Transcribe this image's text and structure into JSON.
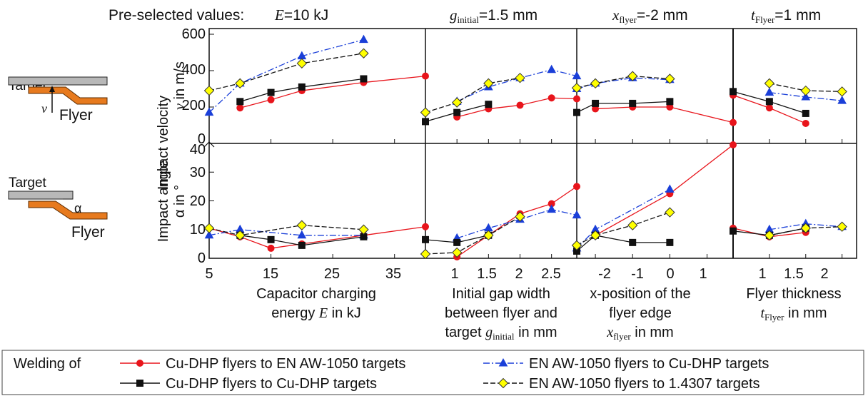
{
  "header": {
    "label": "Pre-selected values:",
    "e_sym": "E",
    "e_val": "=10 kJ",
    "g_sym": "g",
    "g_sub": "initial",
    "g_val": "=1.5 mm",
    "x_sym": "x",
    "x_sub": "flyer",
    "x_val": "=-2 mm",
    "t_sym": "t",
    "t_sub": "Flyer",
    "t_val": "=1 mm"
  },
  "schematic": {
    "top_target": "Target",
    "top_flyer": "Flyer",
    "top_symbol": "v",
    "bottom_target": "Target",
    "bottom_flyer": "Flyer",
    "bottom_symbol": "α"
  },
  "axes": {
    "top_ylabel_1": "Impact velocity",
    "top_ylabel_2a": "v",
    "top_ylabel_2b": " in m/s",
    "bottom_ylabel_1": "Impact angle",
    "bottom_ylabel_2a": "α",
    "bottom_ylabel_2b": " in °",
    "top_yticks": [
      "0",
      "200",
      "400",
      "600"
    ],
    "bottom_yticks": [
      "0",
      "10",
      "20",
      "30",
      "40"
    ]
  },
  "groups": [
    {
      "xticks": [
        "5",
        "15",
        "25",
        "35"
      ],
      "xlabel": {
        "l1": "Capacitor charging",
        "l2a": "energy ",
        "l2b": "E",
        "l2c": " in kJ",
        "l3a": "",
        "l3b": "",
        "l3c": ""
      }
    },
    {
      "xticks": [
        "1",
        "1.5",
        "2",
        "2.5"
      ],
      "xlabel": {
        "l1": "Initial gap width",
        "l2a": "between flyer and",
        "l2b": "",
        "l2c": "",
        "l3a": "target ",
        "l3b": "g",
        "l3sub": "initial",
        "l3c": " in mm"
      }
    },
    {
      "xticks": [
        "-2",
        "-1",
        "0",
        "1"
      ],
      "xlabel": {
        "l1": "x-position of the",
        "l2a": "flyer edge",
        "l2b": "",
        "l2c": "",
        "l3a": "",
        "l3b": "x",
        "l3sub": "flyer",
        "l3c": " in mm"
      }
    },
    {
      "xticks": [
        "1",
        "1.5",
        "2"
      ],
      "xlabel": {
        "l1": "Flyer thickness",
        "l2a": "",
        "l2b": "t",
        "l2sub": "Flyer",
        "l2c": " in mm",
        "l3a": "",
        "l3b": "",
        "l3c": ""
      }
    }
  ],
  "legend": {
    "title": "Welding of",
    "items": [
      "Cu-DHP flyers to EN AW-1050 targets",
      "EN AW-1050 flyers to Cu-DHP targets",
      "Cu-DHP flyers to Cu-DHP targets",
      "EN AW-1050 flyers to 1.4307 targets"
    ]
  },
  "chart_data": {
    "type": "line",
    "series": [
      {
        "name": "Cu-DHP flyers to EN AW-1050 targets",
        "color": "#e8141b",
        "marker": "circle",
        "dash": "solid"
      },
      {
        "name": "EN AW-1050 flyers to Cu-DHP targets",
        "color": "#1a3fd8",
        "marker": "triangle",
        "dash": "dashdot"
      },
      {
        "name": "Cu-DHP flyers to Cu-DHP targets",
        "color": "#111111",
        "marker": "square",
        "dash": "solid"
      },
      {
        "name": "EN AW-1050 flyers to 1.4307 targets",
        "color": "#ffff00",
        "marker": "diamond",
        "dash": "dashed"
      }
    ],
    "panels": {
      "velocity": {
        "ylim": [
          0,
          600
        ],
        "groups": [
          {
            "xlim": [
              5,
              40
            ],
            "series": [
              {
                "x": [
                  10,
                  15,
                  20,
                  30,
                  40
                ],
                "y": [
                  195,
                  240,
                  290,
                  335,
                  370
                ]
              },
              {
                "x": [
                  5,
                  10,
                  20,
                  30
                ],
                "y": [
                  170,
                  330,
                  480,
                  570
                ]
              },
              {
                "x": [
                  10,
                  15,
                  20,
                  30
                ],
                "y": [
                  230,
                  280,
                  310,
                  355
                ]
              },
              {
                "x": [
                  5,
                  10,
                  20,
                  30
                ],
                "y": [
                  290,
                  330,
                  440,
                  495
                ]
              }
            ]
          },
          {
            "xlim": [
              0.5,
              2.9
            ],
            "series": [
              {
                "x": [
                  1,
                  1.5,
                  2,
                  2.5,
                  2.9
                ],
                "y": [
                  145,
                  190,
                  210,
                  250,
                  245
                ]
              },
              {
                "x": [
                  1,
                  1.5,
                  2,
                  2.5,
                  2.9
                ],
                "y": [
                  230,
                  310,
                  360,
                  405,
                  370
                ]
              },
              {
                "x": [
                  0.5,
                  1,
                  1.5
                ],
                "y": [
                  120,
                  170,
                  215
                ]
              },
              {
                "x": [
                  0.5,
                  1,
                  1.5,
                  2
                ],
                "y": [
                  170,
                  225,
                  330,
                  360
                ]
              }
            ]
          },
          {
            "xlim": [
              -2.5,
              1.7
            ],
            "series": [
              {
                "x": [
                  -2,
                  -1,
                  0,
                  1.7
                ],
                "y": [
                  190,
                  200,
                  200,
                  115
                ]
              },
              {
                "x": [
                  -2.5,
                  -2,
                  -1,
                  0
                ],
                "y": [
                  300,
                  330,
                  360,
                  350
                ]
              },
              {
                "x": [
                  -2.5,
                  -2,
                  -1,
                  0
                ],
                "y": [
                  170,
                  220,
                  220,
                  230
                ]
              },
              {
                "x": [
                  -2.5,
                  -2,
                  -1,
                  0
                ],
                "y": [
                  305,
                  330,
                  370,
                  355
                ]
              }
            ]
          },
          {
            "xlim": [
              0.5,
              2.2
            ],
            "series": [
              {
                "x": [
                  0.5,
                  1,
                  1.5
                ],
                "y": [
                  265,
                  195,
                  110
                ]
              },
              {
                "x": [
                  1,
                  1.5,
                  2
                ],
                "y": [
                  280,
                  255,
                  235
                ]
              },
              {
                "x": [
                  0.5,
                  1,
                  1.5
                ],
                "y": [
                  285,
                  230,
                  165
                ]
              },
              {
                "x": [
                  1,
                  1.5,
                  2
                ],
                "y": [
                  330,
                  290,
                  285
                ]
              }
            ]
          }
        ]
      },
      "angle": {
        "ylim": [
          0,
          40
        ],
        "groups": [
          {
            "xlim": [
              5,
              40
            ],
            "series": [
              {
                "x": [
                  5,
                  10,
                  15,
                  20,
                  30,
                  40
                ],
                "y": [
                  10.5,
                  7.5,
                  3.5,
                  5,
                  8,
                  11
                ]
              },
              {
                "x": [
                  5,
                  10,
                  20,
                  30
                ],
                "y": [
                  8,
                  10,
                  8,
                  8
                ]
              },
              {
                "x": [
                  10,
                  15,
                  20,
                  30
                ],
                "y": [
                  8,
                  6.5,
                  4.5,
                  7.5
                ]
              },
              {
                "x": [
                  5,
                  10,
                  20,
                  30
                ],
                "y": [
                  10.5,
                  8,
                  11.5,
                  10
                ]
              }
            ]
          },
          {
            "xlim": [
              0.5,
              2.9
            ],
            "series": [
              {
                "x": [
                  1,
                  1.5,
                  2,
                  2.5,
                  2.9
                ],
                "y": [
                  0.5,
                  8,
                  15.5,
                  19,
                  25
                ]
              },
              {
                "x": [
                  1,
                  1.5,
                  2,
                  2.5,
                  2.9
                ],
                "y": [
                  7,
                  10.5,
                  13.5,
                  17,
                  15
                ]
              },
              {
                "x": [
                  0.5,
                  1,
                  1.5
                ],
                "y": [
                  6.5,
                  5.5,
                  8
                ]
              },
              {
                "x": [
                  0.5,
                  1,
                  1.5,
                  2
                ],
                "y": [
                  1.5,
                  2,
                  8,
                  14.5
                ]
              }
            ]
          },
          {
            "xlim": [
              -2.5,
              1.7
            ],
            "series": [
              {
                "x": [
                  -2,
                  0,
                  1.7
                ],
                "y": [
                  8,
                  22.5,
                  39.5
                ]
              },
              {
                "x": [
                  -2.5,
                  -2,
                  0
                ],
                "y": [
                  3.5,
                  10,
                  24
                ]
              },
              {
                "x": [
                  -2.5,
                  -2,
                  -1,
                  0
                ],
                "y": [
                  2.5,
                  8,
                  5.5,
                  5.5
                ]
              },
              {
                "x": [
                  -2.5,
                  -2,
                  -1,
                  0
                ],
                "y": [
                  4.5,
                  8,
                  11.5,
                  16
                ]
              }
            ]
          },
          {
            "xlim": [
              0.5,
              2.2
            ],
            "series": [
              {
                "x": [
                  0.5,
                  1,
                  1.5
                ],
                "y": [
                  10.5,
                  7.5,
                  9
                ]
              },
              {
                "x": [
                  1,
                  1.5,
                  2
                ],
                "y": [
                  10,
                  12,
                  11
                ]
              },
              {
                "x": [
                  0.5,
                  1,
                  1.5
                ],
                "y": [
                  9.5,
                  8,
                  10.5
                ]
              },
              {
                "x": [
                  1,
                  1.5,
                  2
                ],
                "y": [
                  8,
                  10.5,
                  11
                ]
              }
            ]
          }
        ]
      }
    }
  }
}
